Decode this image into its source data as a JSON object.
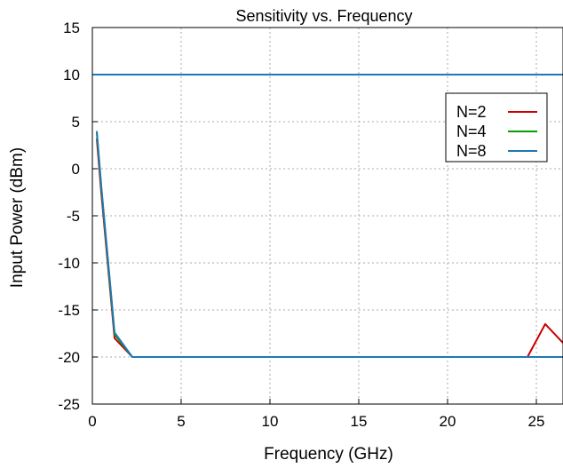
{
  "chart_data": {
    "type": "line",
    "title": "Sensitivity vs. Frequency",
    "xlabel": "Frequency (GHz)",
    "ylabel": "Input Power (dBm)",
    "xlim": [
      0,
      26.5
    ],
    "ylim": [
      -25,
      15
    ],
    "xticks": [
      0,
      5,
      10,
      15,
      20,
      25
    ],
    "yticks": [
      -25,
      -20,
      -15,
      -10,
      -5,
      0,
      5,
      10,
      15
    ],
    "grid": true,
    "legend_position": "top-right",
    "series": [
      {
        "name": "N=2",
        "color": "#cc0000",
        "x": [
          0.25,
          0.5,
          1.25,
          2.25,
          24.5,
          25.5,
          26.5
        ],
        "y": [
          3.2,
          -2.5,
          -18.0,
          -20.0,
          -20.0,
          -16.5,
          -18.5
        ]
      },
      {
        "name": "N=4",
        "color": "#00a000",
        "x": [
          0.25,
          0.5,
          1.25,
          2.25,
          26.5
        ],
        "y": [
          3.8,
          -2.0,
          -17.6,
          -20.0,
          -20.0
        ]
      },
      {
        "name": "N=8",
        "color": "#1f78b4",
        "x": [
          0.25,
          0.5,
          1.25,
          2.25,
          26.5
        ],
        "y": [
          4.0,
          -1.8,
          -17.4,
          -20.0,
          -20.0
        ]
      }
    ],
    "reference_lines": [
      {
        "axis": "y",
        "value": 10,
        "color": "#1f78b4"
      }
    ]
  }
}
